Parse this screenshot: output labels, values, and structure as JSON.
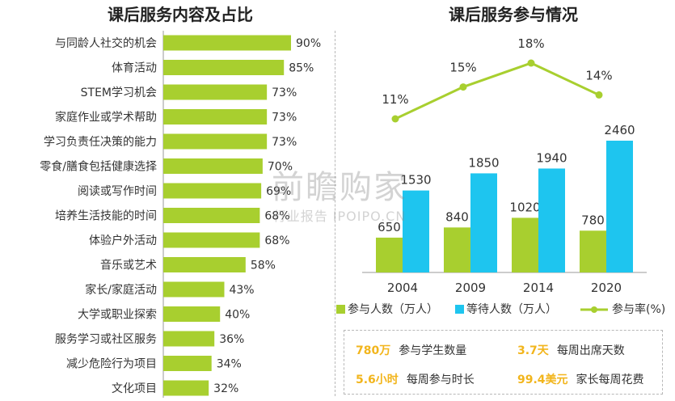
{
  "left_chart": {
    "title": "课后服务内容及占比",
    "chart_data": {
      "type": "bar",
      "orientation": "horizontal",
      "categories": [
        "与同龄人社交的机会",
        "体育活动",
        "STEM学习机会",
        "家庭作业或学术帮助",
        "学习负责任决策的能力",
        "零食/膳食包括健康选择",
        "阅读或写作时间",
        "培养生活技能的时间",
        "体验户外活动",
        "音乐或艺术",
        "家长/家庭活动",
        "大学或职业探索",
        "服务学习或社区服务",
        "减少危险行为项目",
        "文化项目"
      ],
      "values": [
        90,
        85,
        73,
        73,
        73,
        70,
        69,
        68,
        68,
        58,
        43,
        40,
        36,
        34,
        32
      ],
      "value_labels": [
        "90%",
        "85%",
        "73%",
        "73%",
        "73%",
        "70%",
        "69%",
        "68%",
        "68%",
        "58%",
        "43%",
        "40%",
        "36%",
        "34%",
        "32%"
      ],
      "xlim": [
        0,
        100
      ],
      "bar_color": "#a8cf2f"
    }
  },
  "right_chart": {
    "title": "课后服务参与情况",
    "chart_data": {
      "type": "bar",
      "categories": [
        "2004",
        "2009",
        "2014",
        "2020"
      ],
      "series": [
        {
          "name": "参与人数（万人）",
          "type": "bar",
          "color": "#a8cf2f",
          "values": [
            650,
            840,
            1020,
            780
          ],
          "labels": [
            "650",
            "840",
            "1020",
            "780"
          ]
        },
        {
          "name": "等待人数（万人）",
          "type": "bar",
          "color": "#1ec5ef",
          "values": [
            1530,
            1850,
            1940,
            2460
          ],
          "labels": [
            "1530",
            "1850",
            "1940",
            "2460"
          ]
        },
        {
          "name": "参与率(%)",
          "type": "line",
          "color": "#a8cf2f",
          "values": [
            11,
            15,
            18,
            14
          ],
          "labels": [
            "11%",
            "15%",
            "18%",
            "14%"
          ]
        }
      ],
      "legend_position": "bottom",
      "ylim_bars": [
        0,
        2500
      ],
      "ylim_line": [
        0,
        20
      ]
    }
  },
  "stats": [
    {
      "value": "780万",
      "label": "参与学生数量"
    },
    {
      "value": "3.7天",
      "label": "每周出席天数"
    },
    {
      "value": "5.6小时",
      "label": "每周参与时长"
    },
    {
      "value": "99.4美元",
      "label": "家长每周花费"
    }
  ],
  "watermark": {
    "main": "前瞻购家",
    "sub": "行业报告 IPOIPO.CN"
  }
}
